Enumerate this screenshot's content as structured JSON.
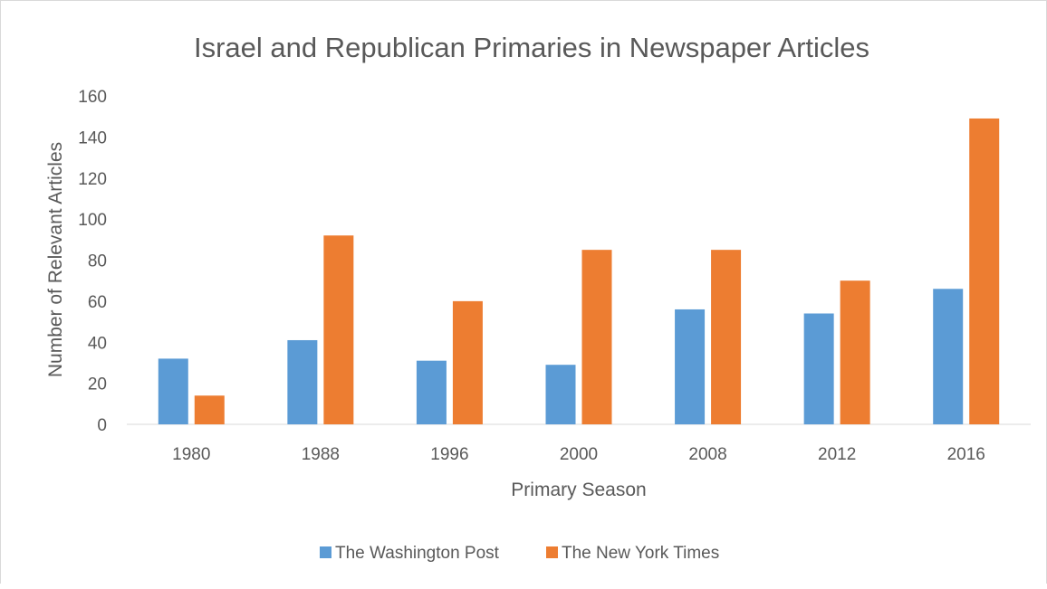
{
  "chart_data": {
    "type": "bar",
    "title": "Israel and Republican Primaries in Newspaper Articles",
    "xlabel": "Primary Season",
    "ylabel": "Number of Relevant Articles",
    "categories": [
      "1980",
      "1988",
      "1996",
      "2000",
      "2008",
      "2012",
      "2016"
    ],
    "series": [
      {
        "name": "The Washington Post",
        "color": "#5b9bd5",
        "values": [
          32,
          41,
          31,
          29,
          56,
          54,
          66
        ]
      },
      {
        "name": "The New York Times",
        "color": "#ed7d31",
        "values": [
          14,
          92,
          60,
          85,
          85,
          70,
          149
        ]
      }
    ],
    "ylim": [
      0,
      160
    ],
    "yticks": [
      "0",
      "20",
      "40",
      "60",
      "80",
      "100",
      "120",
      "140",
      "160"
    ],
    "grid": false,
    "legend_position": "bottom"
  }
}
